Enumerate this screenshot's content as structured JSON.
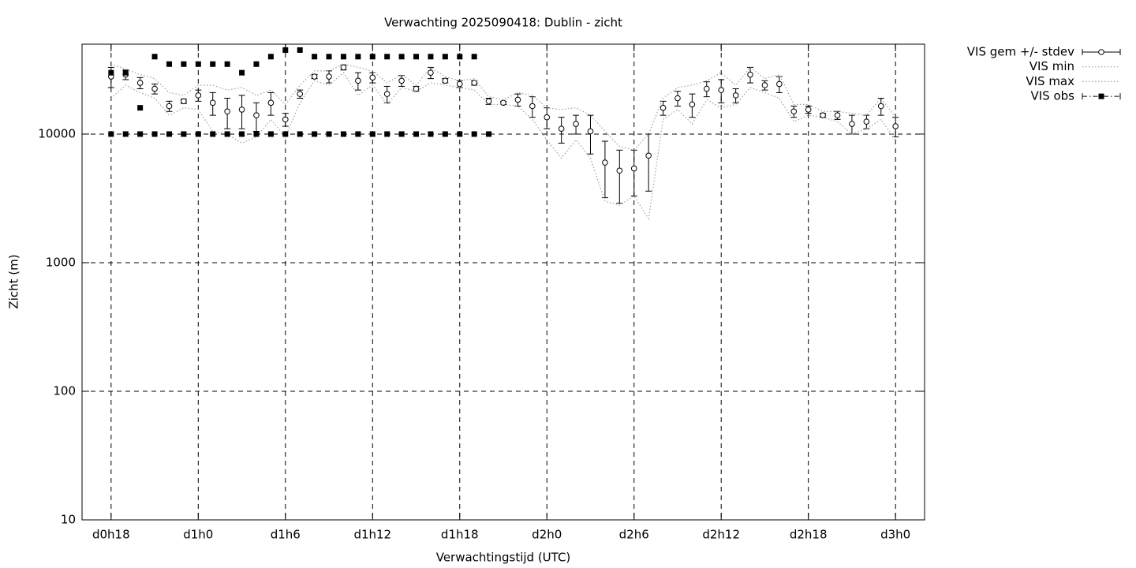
{
  "chart_data": {
    "type": "line",
    "title": "Verwachting 2025090418: Dublin - zicht",
    "x_label": "Verwachtingstijd (UTC)",
    "y_label": "Zicht (m)",
    "log_scale": "y",
    "grid": true,
    "legend": "right",
    "xlim": [
      16,
      74
    ],
    "xticks": [
      {
        "value": 18,
        "label": "d0h18"
      },
      {
        "value": 24,
        "label": "d1h0"
      },
      {
        "value": 30,
        "label": "d1h6"
      },
      {
        "value": 36,
        "label": "d1h12"
      },
      {
        "value": 42,
        "label": "d1h18"
      },
      {
        "value": 48,
        "label": "d2h0"
      },
      {
        "value": 54,
        "label": "d2h6"
      },
      {
        "value": 60,
        "label": "d2h12"
      },
      {
        "value": 66,
        "label": "d2h18"
      },
      {
        "value": 72,
        "label": "d3h0"
      }
    ],
    "ylim": [
      10,
      50000
    ],
    "yticks": [
      10,
      100,
      1000,
      10000
    ],
    "x": [
      18,
      19,
      20,
      21,
      22,
      23,
      24,
      25,
      26,
      27,
      28,
      29,
      30,
      31,
      32,
      33,
      34,
      35,
      36,
      37,
      38,
      39,
      40,
      41,
      42,
      43,
      44,
      45,
      46,
      47,
      48,
      49,
      50,
      51,
      52,
      53,
      54,
      55,
      56,
      57,
      58,
      59,
      60,
      61,
      62,
      63,
      64,
      65,
      66,
      67,
      68,
      69,
      70,
      71,
      72
    ],
    "series": [
      {
        "name": "VIS gem +/- stdev",
        "color": "#000000",
        "style": "errorbars",
        "values": [
          28000,
          29000,
          25000,
          22500,
          16500,
          18000,
          20000,
          17500,
          15000,
          15500,
          14000,
          17500,
          13000,
          20500,
          28000,
          28000,
          33000,
          26000,
          27500,
          20500,
          26000,
          22500,
          30000,
          26000,
          24500,
          25000,
          18000,
          17500,
          18500,
          16500,
          13500,
          11000,
          12000,
          10500,
          6000,
          5200,
          5400,
          6800,
          16000,
          19000,
          17000,
          22500,
          22000,
          20000,
          29000,
          24000,
          24500,
          15000,
          15500,
          14000,
          14000,
          12000,
          12500,
          16500,
          11500
        ],
        "errors": [
          5000,
          2500,
          2500,
          2000,
          1500,
          700,
          2000,
          3500,
          4000,
          4500,
          3500,
          3500,
          1500,
          1500,
          1000,
          3000,
          1500,
          4000,
          2500,
          3000,
          2500,
          1000,
          3000,
          1000,
          1500,
          1000,
          1000,
          500,
          2000,
          3000,
          2500,
          2500,
          2000,
          3500,
          2800,
          2300,
          2100,
          3200,
          2000,
          2500,
          3500,
          3000,
          4500,
          2500,
          4000,
          2000,
          3500,
          1500,
          1000,
          500,
          1000,
          2000,
          1500,
          2500,
          2000
        ]
      },
      {
        "name": "VIS min",
        "color": "#a0a0a0",
        "style": "dotted",
        "values": [
          19000,
          24000,
          21000,
          19000,
          14000,
          16000,
          15500,
          10500,
          10000,
          8500,
          9500,
          13000,
          9500,
          17500,
          26000,
          24000,
          30000,
          20000,
          24000,
          17000,
          23000,
          21500,
          25000,
          24000,
          23000,
          22000,
          17000,
          17000,
          16500,
          13000,
          9000,
          6500,
          9000,
          6500,
          3000,
          2800,
          3300,
          2200,
          13000,
          15500,
          12000,
          18500,
          16000,
          17000,
          23000,
          21000,
          19000,
          12500,
          14000,
          13500,
          12500,
          10000,
          11000,
          13000,
          9000
        ]
      },
      {
        "name": "VIS max",
        "color": "#a0a0a0",
        "style": "dotted",
        "values": [
          35000,
          32000,
          29000,
          27000,
          21000,
          20000,
          24000,
          24000,
          22000,
          23000,
          20000,
          22000,
          17000,
          24000,
          31000,
          31000,
          35000,
          33000,
          31000,
          25000,
          29000,
          24000,
          33000,
          28000,
          26000,
          27000,
          19500,
          18500,
          21000,
          20000,
          16000,
          15500,
          16000,
          14000,
          10500,
          8000,
          7500,
          10000,
          19000,
          23000,
          24000,
          26000,
          30000,
          24000,
          33000,
          27000,
          29000,
          17000,
          17000,
          15000,
          15000,
          14500,
          14000,
          19000,
          13500
        ]
      },
      {
        "name": "VIS obs",
        "color": "#000000",
        "style": "points",
        "x": [
          18,
          19,
          20,
          21,
          22,
          23,
          24,
          25,
          26,
          27,
          28,
          29,
          30,
          31,
          32,
          33,
          34,
          35,
          36,
          37,
          38,
          39,
          40,
          41,
          42,
          43,
          44,
          18,
          19,
          20,
          21,
          22,
          23,
          24,
          25,
          26,
          27,
          28,
          29,
          30,
          31,
          32,
          33,
          34,
          35,
          36,
          37,
          38,
          39,
          40,
          41,
          42,
          43
        ],
        "values": [
          10000,
          10000,
          10000,
          10000,
          10000,
          10000,
          10000,
          10000,
          10000,
          10000,
          10000,
          10000,
          10000,
          10000,
          10000,
          10000,
          10000,
          10000,
          10000,
          10000,
          10000,
          10000,
          10000,
          10000,
          10000,
          10000,
          10000,
          30000,
          30000,
          16000,
          40000,
          35000,
          35000,
          35000,
          35000,
          35000,
          30000,
          35000,
          40000,
          45000,
          45000,
          40000,
          40000,
          40000,
          40000,
          40000,
          40000,
          40000,
          40000,
          40000,
          40000,
          40000,
          40000
        ]
      }
    ]
  }
}
